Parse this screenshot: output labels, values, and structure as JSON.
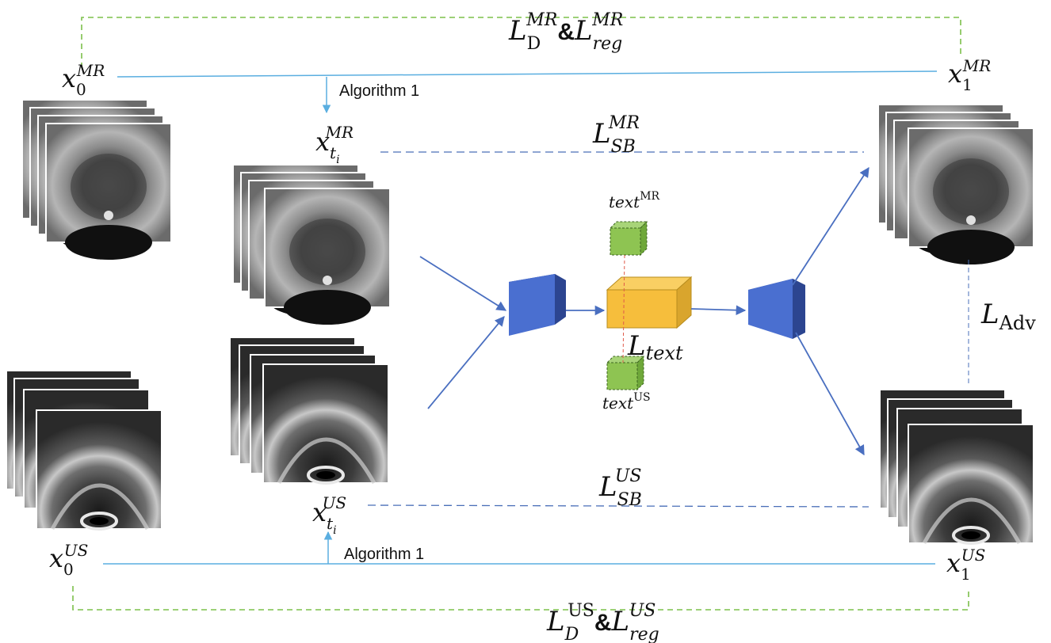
{
  "labels": {
    "top_loss": {
      "base": "L",
      "sub1": "D",
      "sup1": "MR",
      "amp": "&",
      "base2": "L",
      "sub2": "reg",
      "sup2": "MR"
    },
    "bottom_loss": {
      "base": "L",
      "sub1": "D",
      "sup1": "US",
      "amp": "&",
      "base2": "L",
      "sub2": "reg",
      "sup2": "US"
    },
    "x0_mr": {
      "base": "x",
      "sub": "0",
      "sup": "MR"
    },
    "x1_mr": {
      "base": "x",
      "sub": "1",
      "sup": "MR"
    },
    "xti_mr": {
      "base": "x",
      "sub": "t",
      "subsub": "i",
      "sup": "MR"
    },
    "x0_us": {
      "base": "x",
      "sub": "0",
      "sup": "US"
    },
    "x1_us": {
      "base": "x",
      "sub": "1",
      "sup": "US"
    },
    "xti_us": {
      "base": "x",
      "sub": "t",
      "subsub": "i",
      "sup": "US"
    },
    "algorithm_top": "Algorithm 1",
    "algorithm_bottom": "Algorithm 1",
    "lsb_mr": {
      "base": "L",
      "sub": "SB",
      "sup": "MR"
    },
    "lsb_us": {
      "base": "L",
      "sub": "SB",
      "sup": "US"
    },
    "l_adv": {
      "base": "L",
      "sub": "Adv"
    },
    "l_text": {
      "base": "L",
      "sub": "text"
    },
    "text_mr": {
      "base": "text",
      "sup": "MR"
    },
    "text_us": {
      "base": "text",
      "sup": "US"
    }
  },
  "colors": {
    "blue_line": "#5aaee0",
    "green_dashed": "#7cc04a",
    "navy_dashed": "#4a6fb8",
    "arrow_blue": "#4a6fc0",
    "trapezoid_blue": "#4a6fd0",
    "trapezoid_dark": "#2c4590",
    "cube_yellow": "#f6be3c",
    "cube_gold": "#b88d1e",
    "small_cube_green": "#8ec452",
    "small_cube_dark": "#5b8a2c",
    "red_dashed": "#e05a4a"
  },
  "images": [
    "mr-volume-icon",
    "us-volume-icon"
  ]
}
